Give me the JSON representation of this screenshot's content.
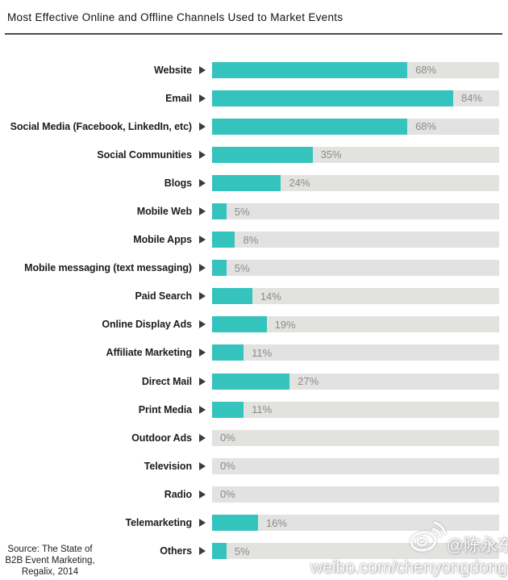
{
  "title": "Most Effective Online and Offline Channels Used to Market Events",
  "source": {
    "line1": "Source: The State of",
    "line2": "B2B Event Marketing,",
    "line3": "Regalix, 2014"
  },
  "watermark": {
    "handle": "@陈永东",
    "url": "weibo.com/chenyongdong",
    "logo": "weibo-logo"
  },
  "colors": {
    "bar_fill": "#35c3be",
    "bar_track": "#e2e2e0",
    "rule": "#4b4b4b",
    "title_text": "#111111",
    "label_text": "#1c1c1c",
    "percent_text": "#8b8b8b",
    "arrow": "#3c3c3c",
    "source_text": "#1e1e1e",
    "watermark_text": "#ffffff"
  },
  "chart_data": {
    "type": "bar",
    "orientation": "horizontal",
    "title": "Most Effective Online and Offline Channels Used to Market Events",
    "categories": [
      "Website",
      "Email",
      "Social Media (Facebook, LinkedIn, etc)",
      "Social Communities",
      "Blogs",
      "Mobile Web",
      "Mobile Apps",
      "Mobile messaging (text messaging)",
      "Paid Search",
      "Online Display Ads",
      "Affiliate Marketing",
      "Direct Mail",
      "Print Media",
      "Outdoor Ads",
      "Television",
      "Radio",
      "Telemarketing",
      "Others"
    ],
    "values": [
      68,
      84,
      68,
      35,
      24,
      5,
      8,
      5,
      14,
      19,
      11,
      27,
      11,
      0,
      0,
      0,
      16,
      5
    ],
    "value_labels": [
      "68%",
      "84%",
      "68%",
      "35%",
      "24%",
      "5%",
      "8%",
      "5%",
      "14%",
      "19%",
      "11%",
      "27%",
      "11%",
      "0%",
      "0%",
      "0%",
      "16%",
      "5%"
    ],
    "value_suffix": "%",
    "xlim": [
      0,
      100
    ],
    "grid": false,
    "legend": false
  }
}
